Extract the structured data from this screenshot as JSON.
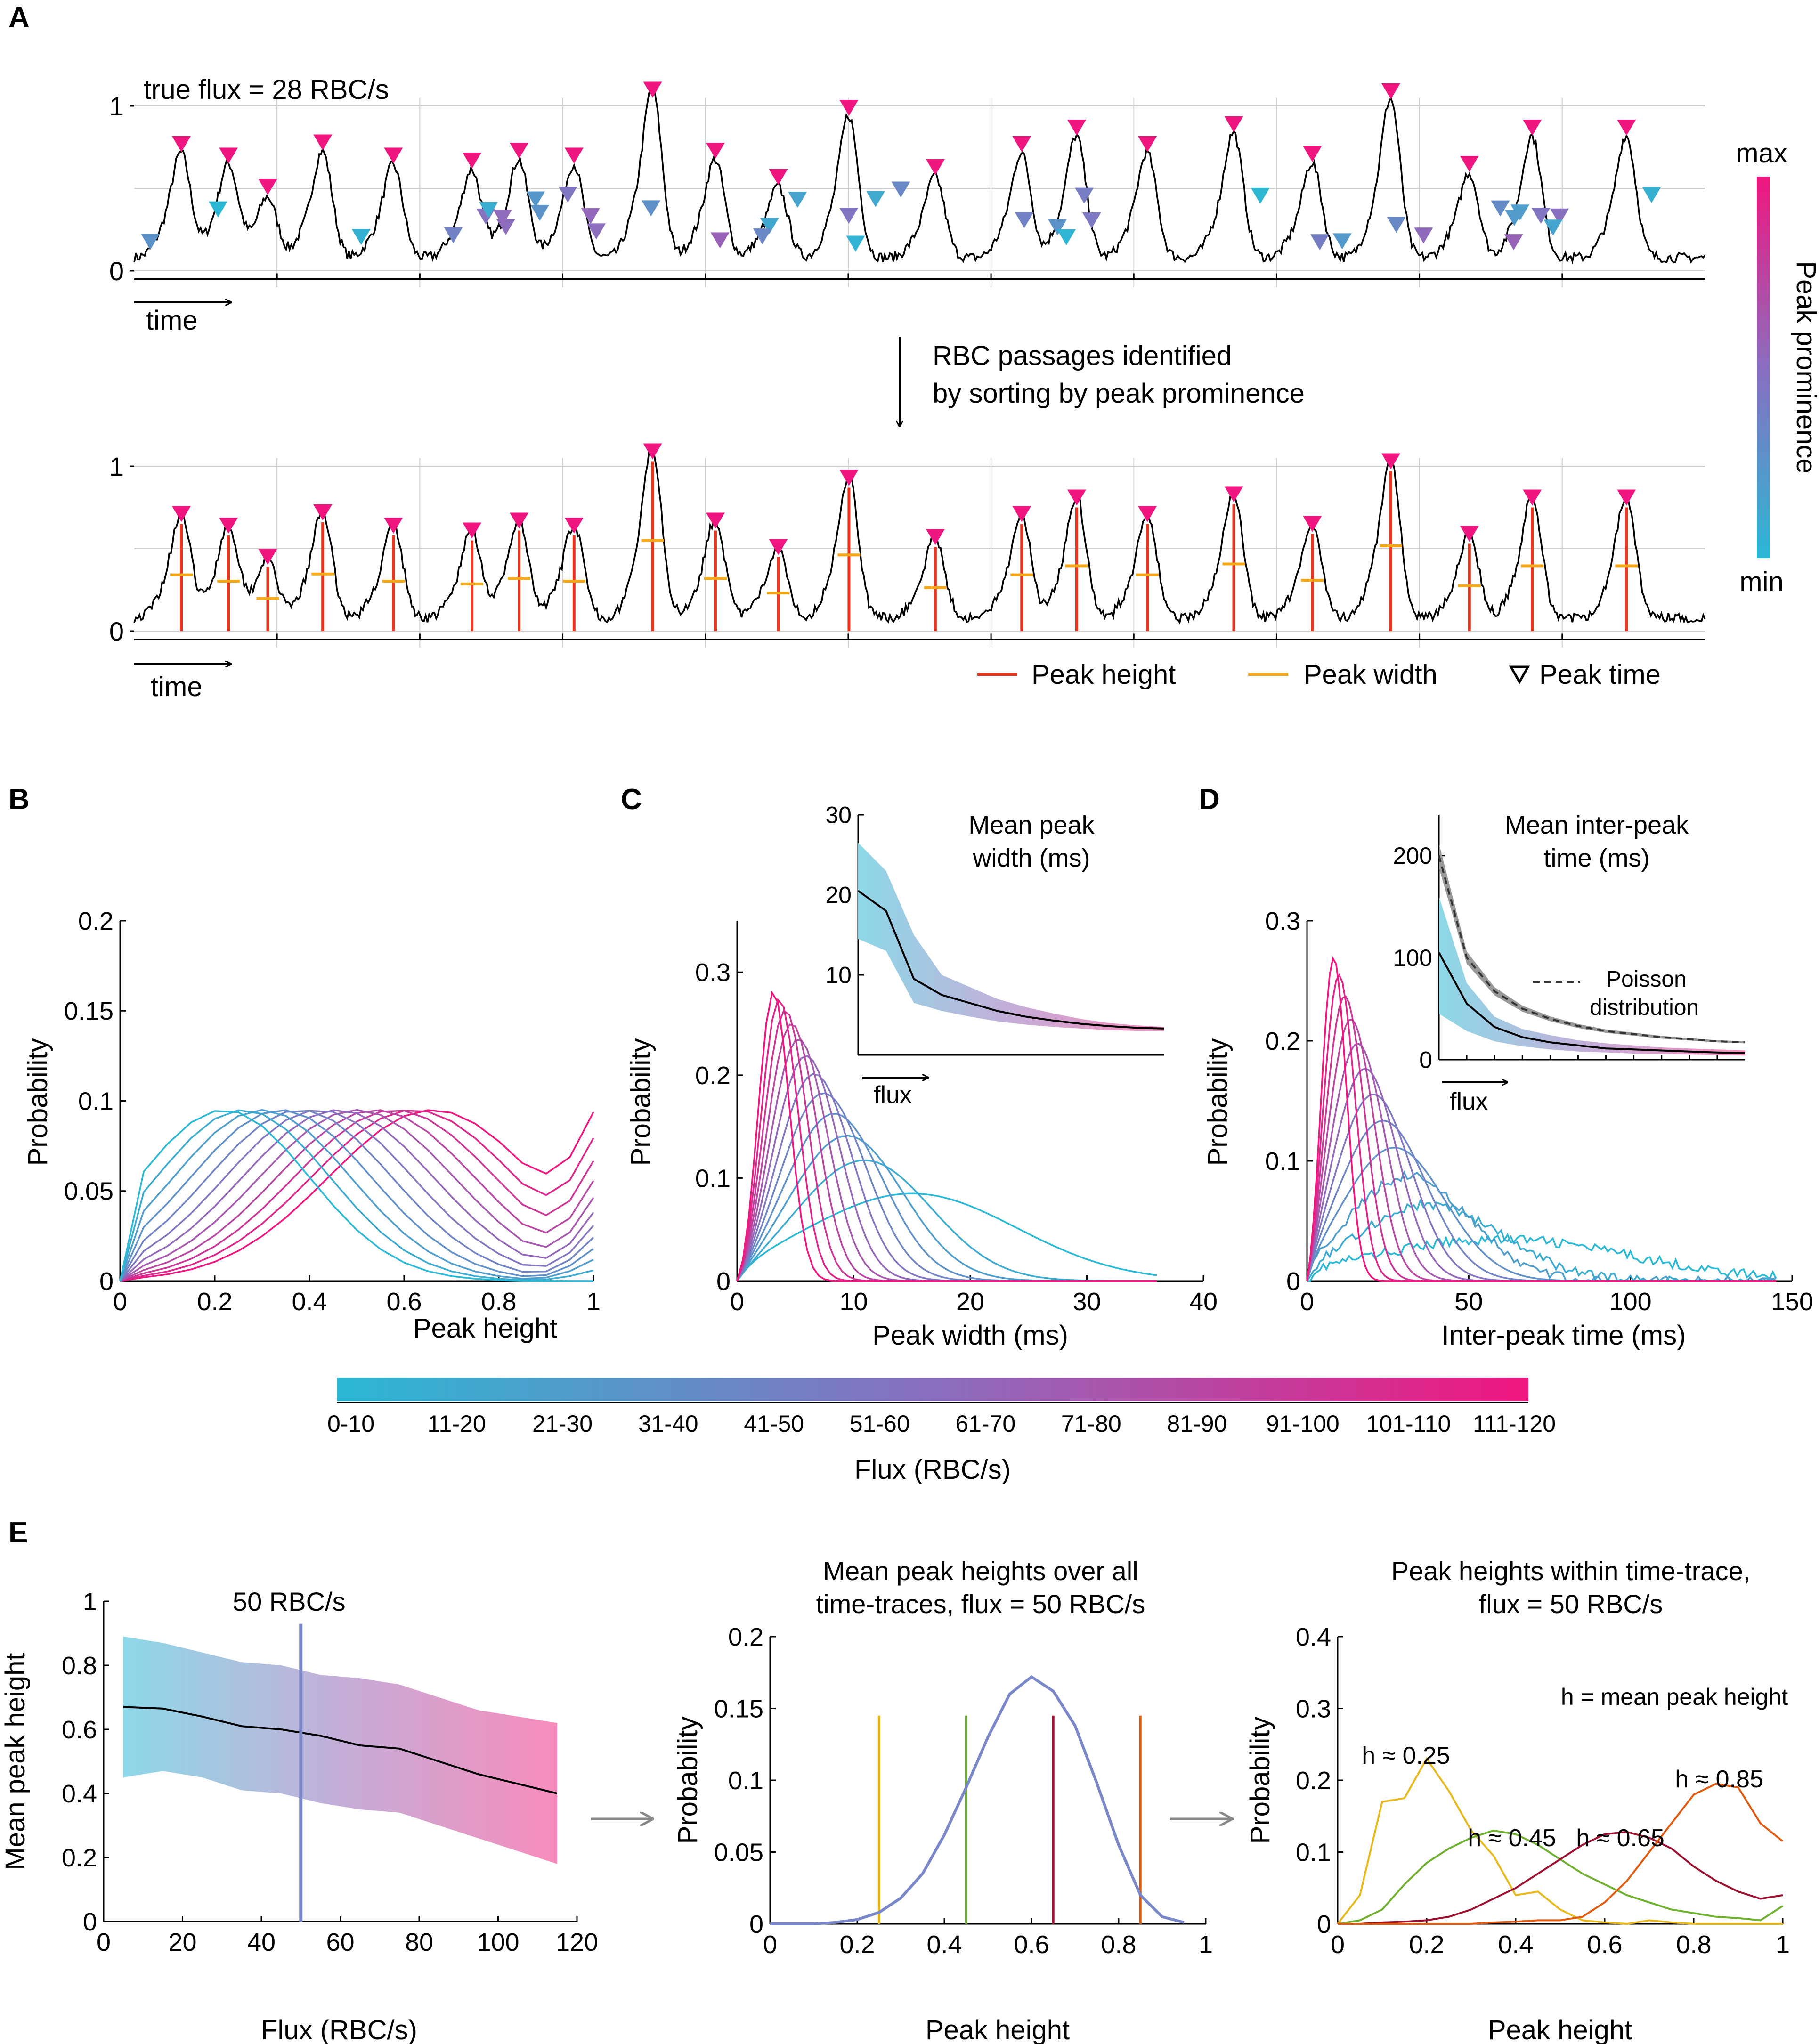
{
  "panels": {
    "A": "A",
    "B": "B",
    "C": "C",
    "D": "D",
    "E": "E"
  },
  "colors": {
    "low": "#2bb8d4",
    "mid": "#8a6fbf",
    "high": "#f0167f",
    "height": "#e8361f",
    "width": "#f5a81c"
  },
  "panelA": {
    "top_label": "true flux = 28 RBC/s",
    "y_ticks": [
      "0",
      "1"
    ],
    "time_label": "time",
    "arrow_text_1": "RBC passages identified",
    "arrow_text_2": "by sorting by peak prominence",
    "legend_height": "Peak height",
    "legend_width": "Peak width",
    "legend_time": "Peak time",
    "colorbar_title": "Peak prominence",
    "colorbar_max": "max",
    "colorbar_min": "min"
  },
  "colorbar": {
    "title": "Flux (RBC/s)",
    "labels": [
      "0-10",
      "11-20",
      "21-30",
      "31-40",
      "41-50",
      "51-60",
      "61-70",
      "71-80",
      "81-90",
      "91-100",
      "101-110",
      "111-120"
    ]
  },
  "chart_data": [
    {
      "id": "B",
      "type": "line",
      "xlabel": "Peak height",
      "ylabel": "Probability",
      "xlim": [
        0,
        1
      ],
      "ylim": [
        0,
        0.2
      ],
      "xticks": [
        "0",
        "0.2",
        "0.4",
        "0.6",
        "0.8",
        "1"
      ],
      "yticks": [
        "0",
        "0.05",
        "0.1",
        "0.15",
        "0.2"
      ],
      "series_count": 12,
      "note": "one curve per flux bin, cyan (0-10) to magenta (111-120)"
    },
    {
      "id": "C",
      "type": "line",
      "xlabel": "Peak width (ms)",
      "ylabel": "Probability",
      "xlim": [
        0,
        40
      ],
      "ylim": [
        0,
        0.35
      ],
      "xticks": [
        "0",
        "10",
        "20",
        "30",
        "40"
      ],
      "yticks": [
        "0",
        "0.1",
        "0.2",
        "0.3"
      ],
      "inset": {
        "title_1": "Mean peak",
        "title_2": "width (ms)",
        "xlabel": "flux",
        "yticks": [
          "10",
          "20",
          "30"
        ],
        "ylim": [
          0,
          30
        ],
        "mean": [
          20.5,
          18,
          9.5,
          7.5,
          6.5,
          5.5,
          4.8,
          4.3,
          3.9,
          3.6,
          3.4,
          3.3
        ],
        "upper": [
          26.5,
          23,
          15,
          10,
          8.5,
          7,
          6,
          5.2,
          4.5,
          4,
          3.7,
          3.5
        ],
        "lower": [
          14.5,
          13,
          6.5,
          5.5,
          4.8,
          4.2,
          3.8,
          3.5,
          3.3,
          3.1,
          3.0,
          3.0
        ]
      }
    },
    {
      "id": "D",
      "type": "line",
      "xlabel": "Inter-peak time (ms)",
      "ylabel": "Probability",
      "xlim": [
        0,
        150
      ],
      "ylim": [
        0,
        0.3
      ],
      "xticks": [
        "0",
        "50",
        "100",
        "150"
      ],
      "yticks": [
        "0",
        "0.1",
        "0.2",
        "0.3"
      ],
      "inset": {
        "title_1": "Mean inter-peak",
        "title_2": "time (ms)",
        "xlabel": "flux",
        "legend_1": "Poisson",
        "legend_2": "distribution",
        "yticks": [
          "0",
          "100",
          "200"
        ],
        "ylim": [
          0,
          240
        ],
        "mean": [
          105,
          55,
          32,
          22,
          17,
          14,
          11,
          10,
          9,
          8,
          7,
          6.5
        ],
        "upper": [
          160,
          75,
          42,
          30,
          24,
          19,
          16,
          14,
          12,
          11,
          10,
          9
        ],
        "lower": [
          45,
          28,
          18,
          13,
          10,
          8,
          7,
          6,
          5.5,
          5,
          4.5,
          4
        ],
        "poisson": [
          200,
          100,
          67,
          50,
          40,
          33,
          28,
          25,
          22,
          20,
          18,
          17
        ]
      }
    },
    {
      "id": "E1",
      "type": "area",
      "xlabel": "Flux (RBC/s)",
      "ylabel": "Mean peak height",
      "xlim": [
        0,
        120
      ],
      "ylim": [
        0,
        1
      ],
      "xticks": [
        "0",
        "20",
        "40",
        "60",
        "80",
        "100",
        "120"
      ],
      "yticks": [
        "0",
        "0.2",
        "0.4",
        "0.6",
        "0.8",
        "1"
      ],
      "vline_label": "50 RBC/s",
      "vline_x": 50,
      "x": [
        5,
        15,
        25,
        35,
        45,
        55,
        65,
        75,
        85,
        95,
        105,
        115
      ],
      "mean": [
        0.67,
        0.665,
        0.64,
        0.61,
        0.6,
        0.58,
        0.55,
        0.54,
        0.5,
        0.46,
        0.43,
        0.4
      ],
      "upper": [
        0.89,
        0.87,
        0.84,
        0.81,
        0.8,
        0.77,
        0.76,
        0.74,
        0.7,
        0.66,
        0.64,
        0.62
      ],
      "lower": [
        0.45,
        0.47,
        0.45,
        0.41,
        0.4,
        0.37,
        0.35,
        0.34,
        0.3,
        0.26,
        0.22,
        0.18
      ]
    },
    {
      "id": "E2",
      "type": "line",
      "title_1": "Mean peak heights over all",
      "title_2": "time-traces, flux = 50 RBC/s",
      "xlabel": "Peak height",
      "ylabel": "Probability",
      "xlim": [
        0,
        1
      ],
      "ylim": [
        0,
        0.2
      ],
      "xticks": [
        "0",
        "0.2",
        "0.4",
        "0.6",
        "0.8",
        "1"
      ],
      "yticks": [
        "0",
        "0.05",
        "0.1",
        "0.15",
        "0.2"
      ],
      "x": [
        0,
        0.05,
        0.1,
        0.15,
        0.2,
        0.25,
        0.3,
        0.35,
        0.4,
        0.45,
        0.5,
        0.55,
        0.6,
        0.65,
        0.7,
        0.75,
        0.8,
        0.85,
        0.9,
        0.95
      ],
      "values": [
        0,
        0,
        0,
        0.001,
        0.003,
        0.008,
        0.018,
        0.035,
        0.062,
        0.095,
        0.13,
        0.16,
        0.172,
        0.162,
        0.138,
        0.098,
        0.055,
        0.02,
        0.005,
        0.001
      ],
      "vlines": [
        0.25,
        0.45,
        0.65,
        0.85
      ]
    },
    {
      "id": "E3",
      "type": "line",
      "title_1": "Peak heights within time-trace,",
      "title_2": "flux = 50 RBC/s",
      "xlabel": "Peak height",
      "ylabel": "Probability",
      "xlim": [
        0,
        1
      ],
      "ylim": [
        0,
        0.4
      ],
      "xticks": [
        "0",
        "0.2",
        "0.4",
        "0.6",
        "0.8",
        "1"
      ],
      "yticks": [
        "0",
        "0.1",
        "0.2",
        "0.3",
        "0.4"
      ],
      "legend": "h = mean peak height",
      "x": [
        0,
        0.05,
        0.1,
        0.15,
        0.2,
        0.25,
        0.3,
        0.35,
        0.4,
        0.45,
        0.5,
        0.55,
        0.6,
        0.65,
        0.7,
        0.75,
        0.8,
        0.85,
        0.9,
        0.95,
        1
      ],
      "series": [
        {
          "name": "h ≈ 0.25",
          "values": [
            0,
            0.04,
            0.17,
            0.175,
            0.23,
            0.185,
            0.13,
            0.095,
            0.04,
            0.045,
            0.02,
            0.005,
            0.002,
            0,
            0.005,
            0.002,
            0,
            0,
            0,
            0,
            0
          ]
        },
        {
          "name": "h ≈ 0.45",
          "values": [
            0,
            0.005,
            0.02,
            0.055,
            0.085,
            0.105,
            0.12,
            0.13,
            0.125,
            0.11,
            0.09,
            0.07,
            0.055,
            0.04,
            0.03,
            0.02,
            0.015,
            0.01,
            0.008,
            0.005,
            0.025
          ]
        },
        {
          "name": "h ≈ 0.65",
          "values": [
            0,
            0,
            0.002,
            0.003,
            0.005,
            0.01,
            0.02,
            0.035,
            0.05,
            0.07,
            0.09,
            0.11,
            0.125,
            0.128,
            0.12,
            0.105,
            0.08,
            0.06,
            0.045,
            0.035,
            0.04
          ]
        },
        {
          "name": "h ≈ 0.85",
          "values": [
            0,
            0,
            0,
            0,
            0,
            0,
            0,
            0.002,
            0.003,
            0.005,
            0.005,
            0.01,
            0.03,
            0.06,
            0.1,
            0.14,
            0.18,
            0.195,
            0.19,
            0.14,
            0.115
          ]
        }
      ]
    }
  ]
}
